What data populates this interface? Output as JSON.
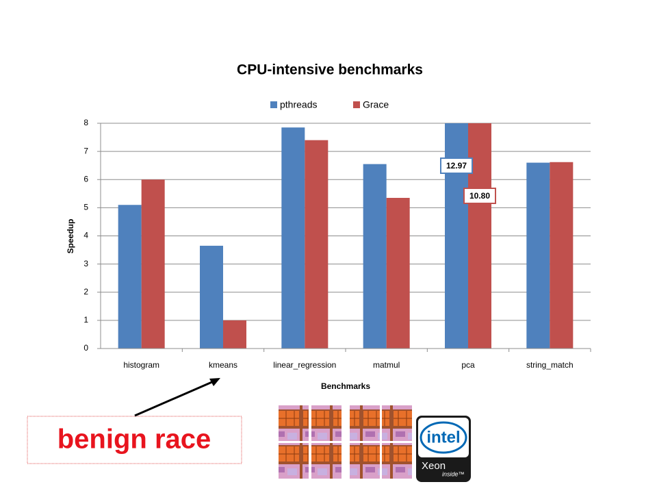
{
  "chart_data": {
    "type": "bar",
    "title": "CPU-intensive benchmarks",
    "x_label": "Benchmarks",
    "y_label": "Speedup",
    "categories": [
      "histogram",
      "kmeans",
      "linear_regression",
      "matmul",
      "pca",
      "string_match"
    ],
    "series": [
      {
        "name": "pthreads",
        "color": "#4f81bd",
        "values": [
          5.1,
          3.65,
          7.85,
          6.55,
          12.97,
          6.6
        ],
        "value_labels": [
          null,
          null,
          null,
          null,
          "12.97",
          null
        ]
      },
      {
        "name": "Grace",
        "color": "#c0504d",
        "values": [
          6.0,
          1.0,
          7.4,
          5.35,
          10.8,
          6.62
        ],
        "value_labels": [
          null,
          null,
          null,
          null,
          "10.80",
          null
        ]
      }
    ],
    "ylim": [
      0,
      8
    ],
    "yticks": [
      0,
      1,
      2,
      3,
      4,
      5,
      6,
      7,
      8
    ],
    "grid": true,
    "legend": "top",
    "annotation": "benign race"
  },
  "logo": {
    "brand": "intel",
    "product": "Xeon",
    "tag": "inside™"
  }
}
